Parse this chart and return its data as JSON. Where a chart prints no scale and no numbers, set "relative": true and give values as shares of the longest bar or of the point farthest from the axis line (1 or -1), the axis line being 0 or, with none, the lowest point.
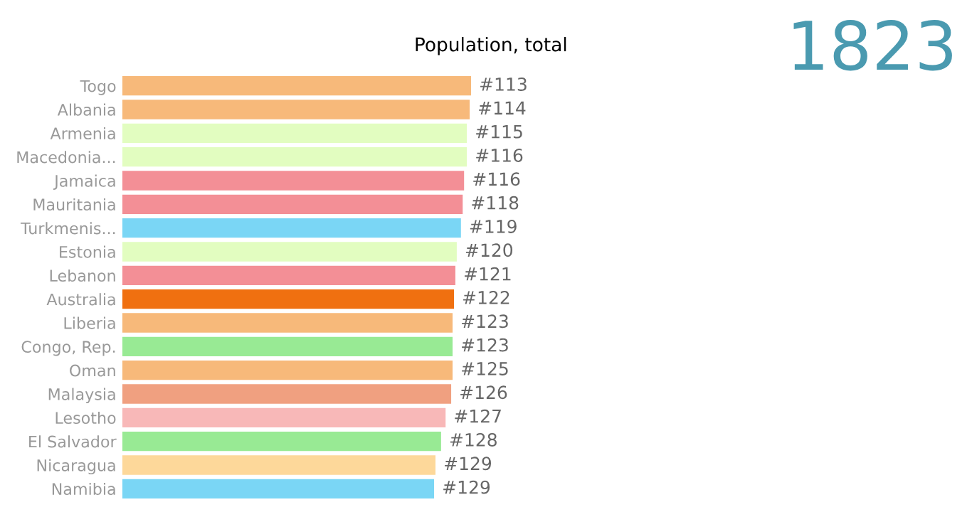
{
  "chart_data": {
    "type": "bar",
    "orientation": "horizontal",
    "relative": true,
    "title": "Population, total",
    "annotations": [
      "1823",
      {
        "text": "#113",
        "x": 1.0,
        "y": "Togo"
      },
      {
        "text": "#114",
        "x": 0.996,
        "y": "Albania"
      },
      {
        "text": "#115",
        "x": 0.988,
        "y": "Armenia"
      },
      {
        "text": "#116",
        "x": 0.988,
        "y": "Macedonia..."
      },
      {
        "text": "#116",
        "x": 0.98,
        "y": "Jamaica"
      },
      {
        "text": "#118",
        "x": 0.976,
        "y": "Mauritania"
      },
      {
        "text": "#119",
        "x": 0.971,
        "y": "Turkmenis..."
      },
      {
        "text": "#120",
        "x": 0.959,
        "y": "Estonia"
      },
      {
        "text": "#121",
        "x": 0.955,
        "y": "Lebanon"
      },
      {
        "text": "#122",
        "x": 0.951,
        "y": "Australia"
      },
      {
        "text": "#123",
        "x": 0.947,
        "y": "Liberia"
      },
      {
        "text": "#123",
        "x": 0.947,
        "y": "Congo, Rep."
      },
      {
        "text": "#125",
        "x": 0.947,
        "y": "Oman"
      },
      {
        "text": "#126",
        "x": 0.943,
        "y": "Malaysia"
      },
      {
        "text": "#127",
        "x": 0.927,
        "y": "Lesotho"
      },
      {
        "text": "#128",
        "x": 0.914,
        "y": "El Salvador"
      },
      {
        "text": "#129",
        "x": 0.898,
        "y": "Nicaragua"
      },
      {
        "text": "#129",
        "x": 0.894,
        "y": "Namibia"
      }
    ],
    "categories": [
      "Togo",
      "Albania",
      "Armenia",
      "Macedonia...",
      "Jamaica",
      "Mauritania",
      "Turkmenis...",
      "Estonia",
      "Lebanon",
      "Australia",
      "Liberia",
      "Congo, Rep.",
      "Oman",
      "Malaysia",
      "Lesotho",
      "El Salvador",
      "Nicaragua",
      "Namibia"
    ],
    "values": [
      1.0,
      0.996,
      0.988,
      0.988,
      0.98,
      0.976,
      0.971,
      0.959,
      0.955,
      0.951,
      0.947,
      0.947,
      0.947,
      0.943,
      0.927,
      0.914,
      0.898,
      0.894
    ],
    "colors": [
      "#f7b97a",
      "#f7b97a",
      "#e2fdc0",
      "#e2fdc0",
      "#f38f96",
      "#f38f96",
      "#7ad6f5",
      "#e2fdc0",
      "#f38f96",
      "#f07010",
      "#f7b97a",
      "#98ea94",
      "#f7b97a",
      "#f0a080",
      "#f8b8b8",
      "#98ea94",
      "#fdd89a",
      "#7ad6f5"
    ],
    "grid": false
  }
}
